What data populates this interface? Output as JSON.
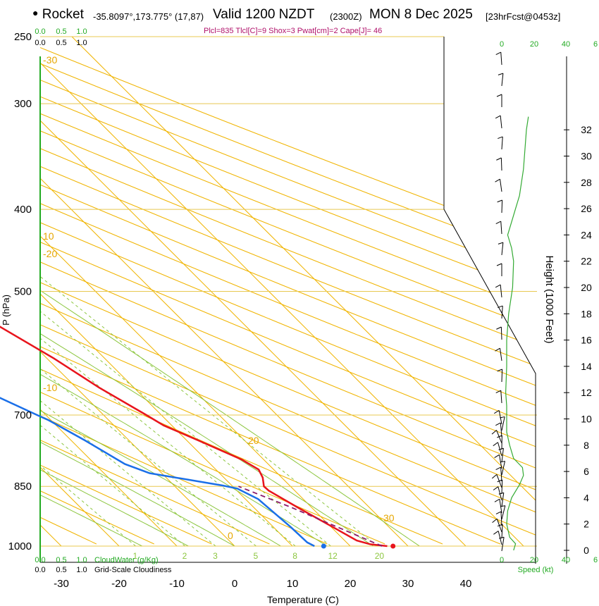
{
  "header": {
    "station": "Rocket",
    "coords": "-35.8097°,173.775° (17,87)",
    "valid": "Valid 1200 NZDT",
    "utc": "(2300Z)",
    "date": "MON 8 Dec 2025",
    "forecast": "[23hrFcst@0453z]",
    "indices": "Plcl=835 Tlcl[C]=9 Shox=3 Pwat[cm]=2 Cape[J]= 46"
  },
  "colors": {
    "temperature": "#e8141c",
    "dewpoint": "#1a6fe8",
    "isotherm": "#f0b400",
    "dry_adiabat": "#f0b400",
    "moist_adiabat": "#8cc63f",
    "mixing_ratio": "#8cc63f",
    "parcel": "#8b1a6b",
    "wind_speed": "#33aa33"
  },
  "chart_data": {
    "type": "line",
    "title": "Skew-T log-P sounding",
    "xlabel": "Temperature (C)",
    "ylabel": "P (hPa)",
    "right_ylabel": "Height (1000 Feet)",
    "x_ticks": [
      "-30",
      "-20",
      "-10",
      "0",
      "10",
      "20",
      "30",
      "40"
    ],
    "y_ticks": [
      "250",
      "300",
      "400",
      "500",
      "700",
      "850",
      "1000"
    ],
    "pressure_levels": [
      250,
      300,
      400,
      500,
      700,
      850,
      1000
    ],
    "height_ticks": [
      "0",
      "2",
      "4",
      "6",
      "8",
      "10",
      "12",
      "14",
      "16",
      "18",
      "20",
      "22",
      "24",
      "26",
      "28",
      "30",
      "32"
    ],
    "ylim_hpa": [
      250,
      1000
    ],
    "xlim_c_at_1000": [
      -34,
      45
    ],
    "temperature_profile": [
      {
        "p": 1000,
        "t": 26.4
      },
      {
        "p": 995,
        "t": 23.8
      },
      {
        "p": 985,
        "t": 22.1
      },
      {
        "p": 950,
        "t": 20.3
      },
      {
        "p": 900,
        "t": 17.6
      },
      {
        "p": 860,
        "t": 15.5
      },
      {
        "p": 850,
        "t": 15.4
      },
      {
        "p": 830,
        "t": 16.7
      },
      {
        "p": 812,
        "t": 17.4
      },
      {
        "p": 790,
        "t": 16.2
      },
      {
        "p": 750,
        "t": 12.0
      },
      {
        "p": 720,
        "t": 8.6
      },
      {
        "p": 700,
        "t": 7.4
      },
      {
        "p": 650,
        "t": 4.0
      },
      {
        "p": 600,
        "t": 1.2
      },
      {
        "p": 550,
        "t": -2.7
      },
      {
        "p": 500,
        "t": -6.9
      },
      {
        "p": 450,
        "t": -11.6
      },
      {
        "p": 400,
        "t": -17.9
      },
      {
        "p": 350,
        "t": -25.2
      },
      {
        "p": 300,
        "t": -32.0
      },
      {
        "p": 265,
        "t": -40.1
      }
    ],
    "dewpoint_profile": [
      {
        "p": 1000,
        "t": 13.8
      },
      {
        "p": 990,
        "t": 13.2
      },
      {
        "p": 950,
        "t": 13.0
      },
      {
        "p": 880,
        "t": 12.2
      },
      {
        "p": 855,
        "t": 10.4
      },
      {
        "p": 848,
        "t": 8.4
      },
      {
        "p": 820,
        "t": -2.1
      },
      {
        "p": 800,
        "t": -4.8
      },
      {
        "p": 750,
        "t": -7.6
      },
      {
        "p": 710,
        "t": -10.4
      },
      {
        "p": 700,
        "t": -11.5
      },
      {
        "p": 650,
        "t": -17.0
      },
      {
        "p": 600,
        "t": -23.5
      },
      {
        "p": 550,
        "t": -31.7
      },
      {
        "p": 500,
        "t": -38.8
      },
      {
        "p": 470,
        "t": -38.0
      },
      {
        "p": 450,
        "t": -35.0
      },
      {
        "p": 400,
        "t": -43.8
      },
      {
        "p": 370,
        "t": -51.4
      },
      {
        "p": 330,
        "t": -41.4
      },
      {
        "p": 315,
        "t": -40.0
      },
      {
        "p": 300,
        "t": -42.6
      },
      {
        "p": 265,
        "t": -49.5
      }
    ],
    "parcel_path": [
      {
        "p": 1000,
        "t": 25.5
      },
      {
        "p": 900,
        "t": 16.5
      },
      {
        "p": 850,
        "t": 11.0
      }
    ],
    "surface_markers": [
      {
        "label": "surface temperature",
        "p": 1000,
        "t": 27.4
      },
      {
        "label": "surface dewpoint",
        "p": 1000,
        "t": 15.4
      }
    ],
    "isotherm_labels": [
      "-30",
      "-20",
      "-10",
      "0",
      "10",
      "20",
      "30"
    ],
    "isotherm_label_values": [
      -30,
      -20,
      -10,
      0,
      10,
      20,
      30
    ],
    "mixing_ratio_labels": [
      "1",
      "2",
      "3",
      "5",
      "8",
      "12",
      "20"
    ],
    "mixing_ratio_values": [
      1,
      2,
      3,
      5,
      8,
      12,
      20
    ],
    "top_axis": {
      "cloudwater_ticks": [
        "0.0",
        "0.5",
        "1.0"
      ],
      "cloudiness_ticks": [
        "0.0",
        "0.5",
        "1.0"
      ]
    },
    "bottom_axis": {
      "cloudwater_label": "CloudWater (g/Kg)",
      "cloudiness_label": "Grid-Scale Cloudiness",
      "cloudwater_ticks": [
        "0.0",
        "0.5",
        "1.0"
      ],
      "cloudiness_ticks": [
        "0.0",
        "0.5",
        "1.0"
      ]
    },
    "wind_speed": {
      "label": "Speed (kt)",
      "ticks_top": [
        "0",
        "20",
        "40",
        "6"
      ],
      "ticks_bottom": [
        "0",
        "20",
        "40",
        "6"
      ],
      "xlim_kt": [
        0,
        60
      ],
      "profile": [
        {
          "h": 0,
          "kt": 12
        },
        {
          "h": 0.5,
          "kt": 14
        },
        {
          "h": 1,
          "kt": 8
        },
        {
          "h": 2,
          "kt": 5
        },
        {
          "h": 3,
          "kt": 6
        },
        {
          "h": 4,
          "kt": 10
        },
        {
          "h": 5,
          "kt": 18
        },
        {
          "h": 5.7,
          "kt": 22
        },
        {
          "h": 6.3,
          "kt": 21
        },
        {
          "h": 7,
          "kt": 12
        },
        {
          "h": 8,
          "kt": 8
        },
        {
          "h": 9,
          "kt": 5
        },
        {
          "h": 10,
          "kt": 5
        },
        {
          "h": 11,
          "kt": 5
        },
        {
          "h": 12,
          "kt": 4
        },
        {
          "h": 14,
          "kt": 5
        },
        {
          "h": 16,
          "kt": 5
        },
        {
          "h": 18,
          "kt": 7
        },
        {
          "h": 20,
          "kt": 11
        },
        {
          "h": 22,
          "kt": 12
        },
        {
          "h": 23,
          "kt": 10
        },
        {
          "h": 24,
          "kt": 6
        },
        {
          "h": 25,
          "kt": 10
        },
        {
          "h": 26,
          "kt": 14
        },
        {
          "h": 27,
          "kt": 18
        },
        {
          "h": 28,
          "kt": 20
        },
        {
          "h": 29,
          "kt": 22
        },
        {
          "h": 30,
          "kt": 23
        },
        {
          "h": 31,
          "kt": 24
        },
        {
          "h": 32,
          "kt": 25
        },
        {
          "h": 33,
          "kt": 27
        }
      ]
    }
  }
}
